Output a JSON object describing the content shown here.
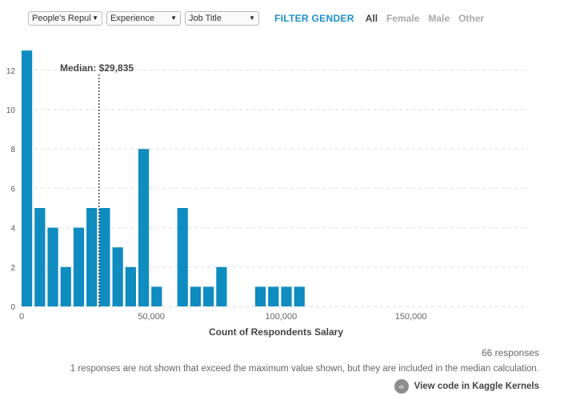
{
  "filters": {
    "country": "People's Repul",
    "experience": "Experience",
    "job_title": "Job Title"
  },
  "gender_filter": {
    "title": "FILTER GENDER",
    "options": [
      "All",
      "Female",
      "Male",
      "Other"
    ],
    "selected": "All"
  },
  "colors": {
    "bar": "#0f8cc0",
    "accent": "#1a8fc9",
    "grid": "#dddddd"
  },
  "chart_data": {
    "type": "bar",
    "title": "",
    "xlabel": "Count of Respondents Salary",
    "ylabel": "",
    "bin_width": 5000,
    "x": [
      0,
      5000,
      10000,
      15000,
      20000,
      25000,
      30000,
      35000,
      40000,
      45000,
      50000,
      60000,
      65000,
      70000,
      75000,
      90000,
      95000,
      100000,
      105000
    ],
    "values": [
      13,
      5,
      4,
      2,
      4,
      5,
      5,
      3,
      2,
      8,
      1,
      5,
      1,
      1,
      2,
      1,
      1,
      1,
      1
    ],
    "xlim": [
      0,
      200000
    ],
    "ylim": [
      0,
      13
    ],
    "x_ticks": [
      0,
      50000,
      100000,
      150000
    ],
    "x_tick_labels": [
      "0",
      "50,000",
      "100,000",
      "150,000"
    ],
    "y_ticks": [
      0,
      2,
      4,
      6,
      8,
      10,
      12
    ],
    "y_tick_labels": [
      "0",
      "2",
      "4",
      "6",
      "8",
      "10",
      "12"
    ],
    "grid": true,
    "median": 29835,
    "median_label": "Median: $29,835"
  },
  "footer": {
    "responses": "66 responses",
    "note": "1 responses are not shown that exceed the maximum value shown, but they are included in the median calculation.",
    "kaggle_link": "View code in Kaggle Kernels",
    "kaggle_icon": "code-icon",
    "kaggle_icon_glyph": "‹›"
  }
}
